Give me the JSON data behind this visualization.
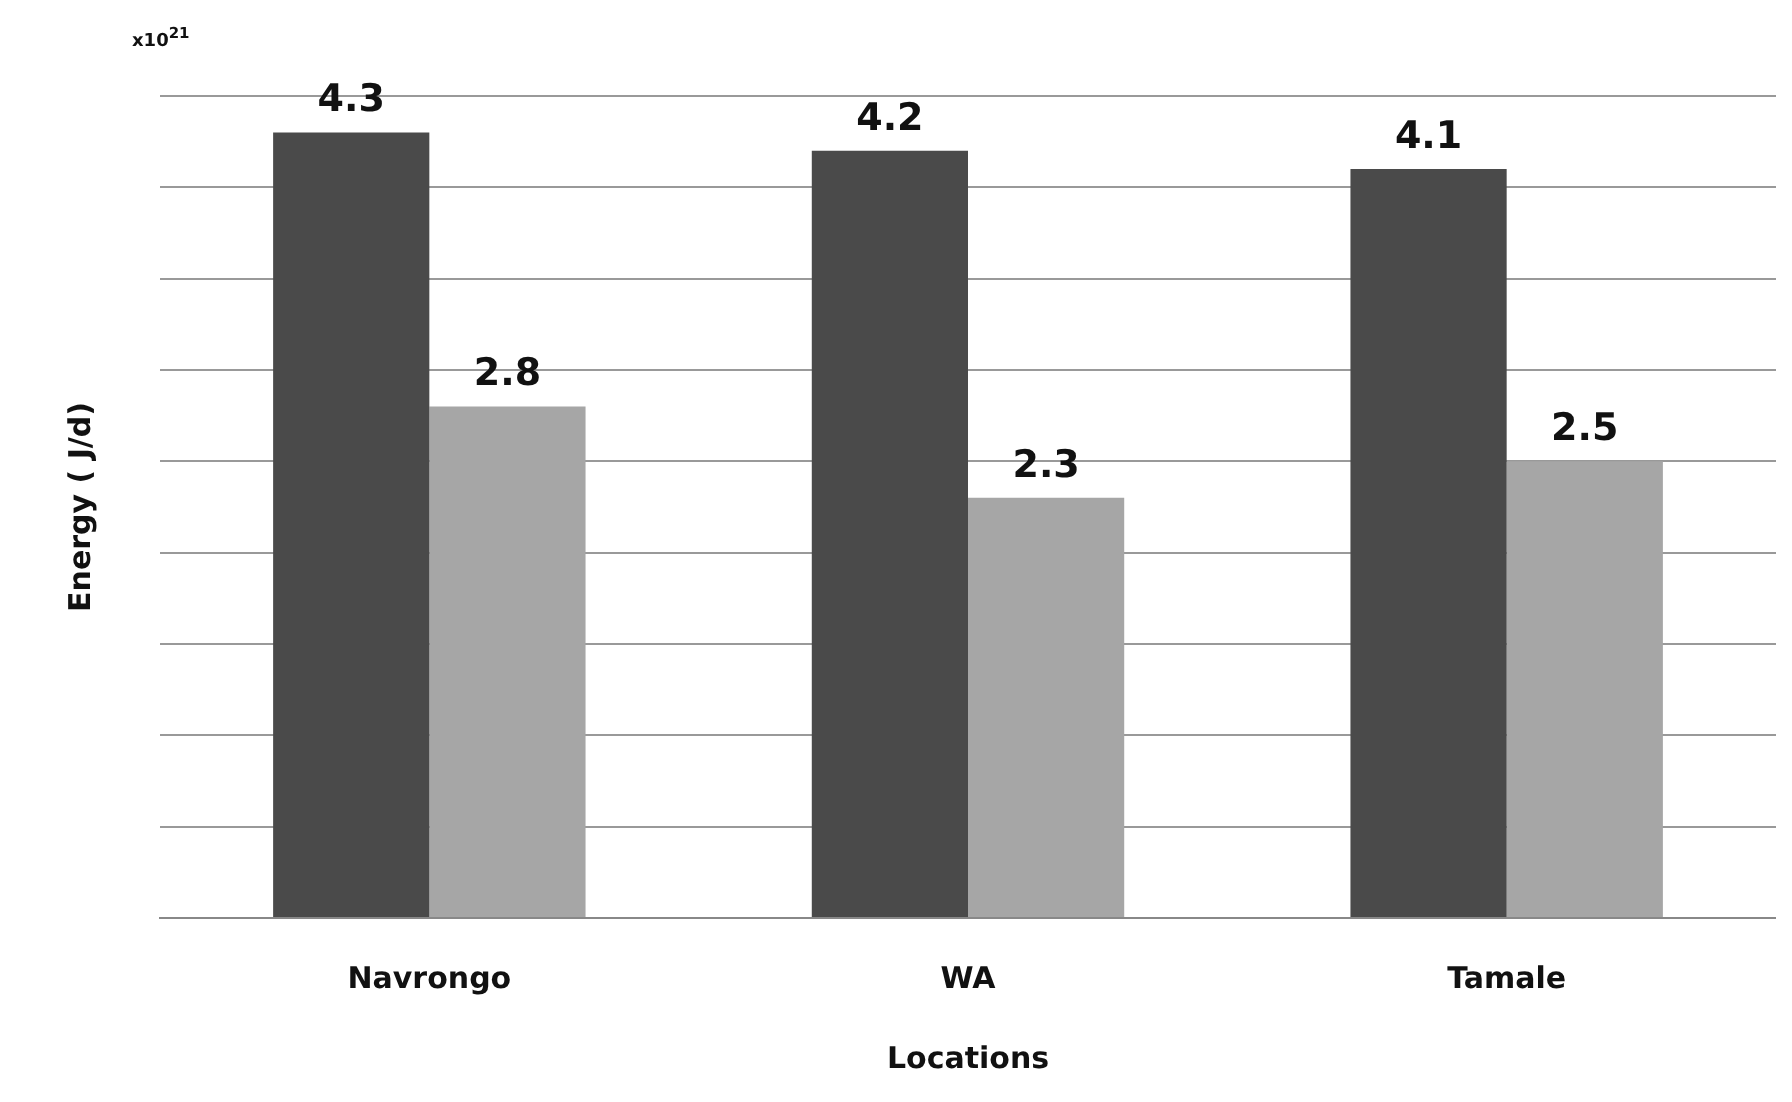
{
  "chart_data": {
    "type": "bar",
    "categories": [
      "Navrongo",
      "WA",
      "Tamale"
    ],
    "series": [
      {
        "color": "#4a4a4a",
        "values": [
          4.3,
          4.2,
          4.1
        ]
      },
      {
        "color": "#a6a6a6",
        "values": [
          2.8,
          2.3,
          2.5
        ]
      }
    ],
    "xlabel": "Locations",
    "ylabel": "Energy ( J/d)",
    "annotations": [
      "x10$^{21}$"
    ],
    "ylim": [
      0,
      4.5
    ],
    "yticks": [
      {
        "value": 0,
        "label": null
      },
      {
        "value": 0.5,
        "label": null
      },
      {
        "value": 1,
        "label": null
      },
      {
        "value": 1.5,
        "label": null
      },
      {
        "value": 2,
        "label": null
      },
      {
        "value": 2.5,
        "label": null
      },
      {
        "value": 3,
        "label": null
      },
      {
        "value": 3.5,
        "label": null
      },
      {
        "value": 4,
        "label": null
      },
      {
        "value": 4.5,
        "label": null
      }
    ],
    "grid": "y",
    "tick_labels": "x",
    "legend": false,
    "data_labels": true
  }
}
